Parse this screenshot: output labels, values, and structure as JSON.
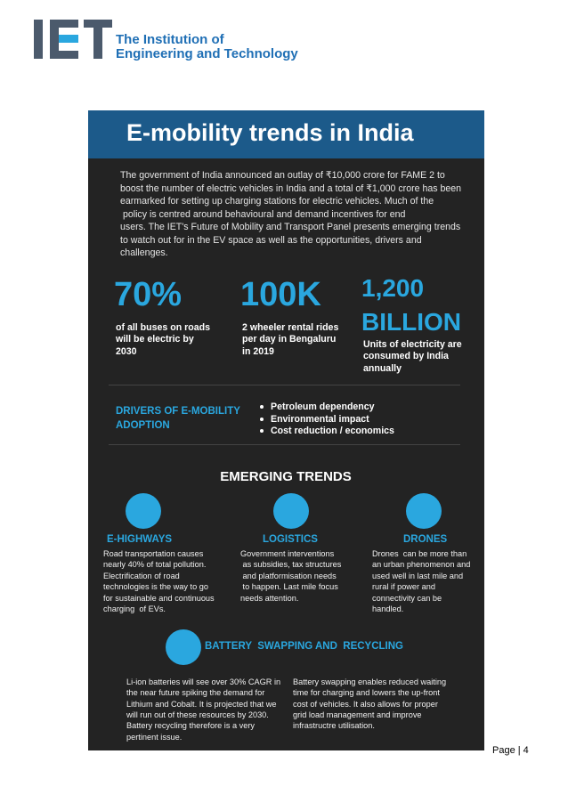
{
  "logo": {
    "name_lines": [
      "The Institution of",
      "Engineering and Technology"
    ]
  },
  "infographic": {
    "title": "E-mobility trends in India",
    "intro_lines": [
      "The government of India announced an outlay of ₹10,000 crore for FAME 2 to",
      "boost the number of electric vehicles in India and a total of ₹1,000 crore has been",
      "earmarked for setting up charging stations for electric vehicles. Much of the",
      " policy is centred around behavioural and demand incentives for end",
      "users. The IET's Future of Mobility and Transport Panel presents emerging trends",
      "to watch out for in the EV space as well as the opportunities, drivers and",
      "challenges."
    ],
    "stats": [
      {
        "figure_lines": [
          "70%"
        ],
        "caption_lines": [
          "of all buses on roads",
          "will be electric by",
          "2030"
        ]
      },
      {
        "figure_lines": [
          "100K"
        ],
        "caption_lines": [
          "2 wheeler rental rides",
          "per day in Bengaluru",
          "in 2019"
        ]
      },
      {
        "figure_lines": [
          "1,200",
          "BILLION"
        ],
        "caption_lines": [
          "Units of electricity are",
          "consumed by India",
          "annually"
        ]
      }
    ],
    "drivers": {
      "heading_lines": [
        "DRIVERS OF E-MOBILITY",
        "ADOPTION"
      ],
      "items": [
        "Petroleum dependency",
        "Environmental impact",
        "Cost reduction / economics"
      ]
    },
    "section_title": "EMERGING TRENDS",
    "trends": [
      {
        "name": "E-HIGHWAYS",
        "text_lines": [
          "Road transportation causes",
          "nearly 40% of total pollution.",
          "Electrification of road",
          "technologies is the way to go",
          "for sustainable and continuous",
          "charging  of EVs."
        ]
      },
      {
        "name": "LOGISTICS",
        "text_lines": [
          "Government interventions",
          " as subsidies, tax structures",
          " and platformisation needs",
          " to happen. Last mile focus",
          "needs attention."
        ]
      },
      {
        "name": "DRONES",
        "text_lines": [
          "Drones  can be more than",
          "an urban phenomenon and",
          "used well in last mile and",
          "rural if power and",
          "connectivity can be",
          "handled."
        ]
      }
    ],
    "battery": {
      "name": "BATTERY  SWAPPING AND  RECYCLING",
      "columns": [
        [
          "Li-ion batteries will see over 30% CAGR in",
          "the near future spiking the demand for",
          "Lithium and Cobalt. It is projected that we",
          "will run out of these resources by 2030.",
          "Battery recycling therefore is a very",
          "pertinent issue."
        ],
        [
          "Battery swapping enables reduced waiting",
          "time for charging and lowers the up-front",
          "cost of vehicles. It also allows for proper",
          "grid load management and improve",
          "infrastructre utilisation."
        ]
      ]
    }
  },
  "footer": {
    "page": "Page | 4"
  }
}
